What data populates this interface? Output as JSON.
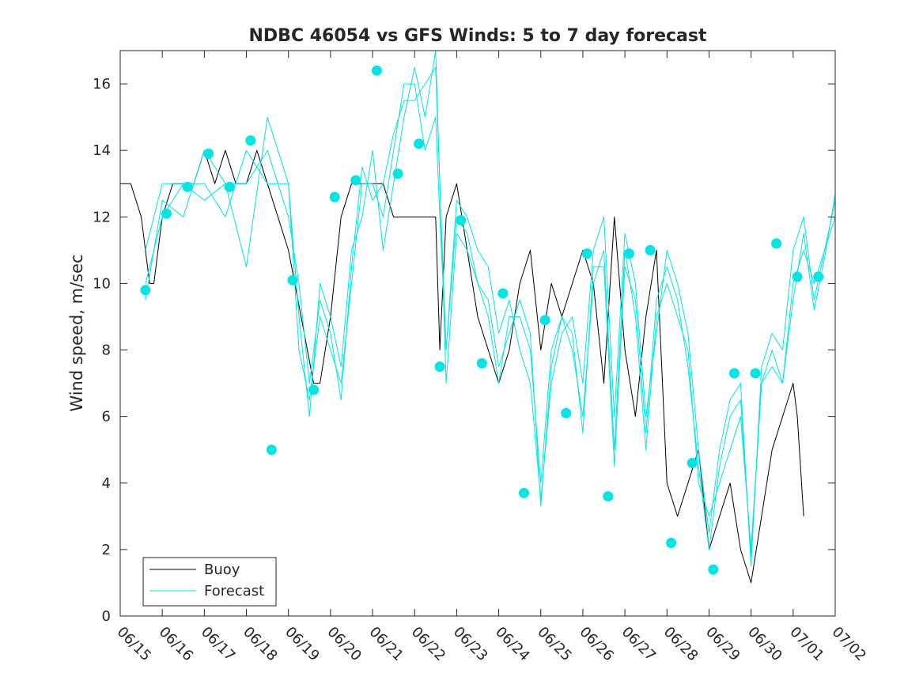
{
  "chart_data": {
    "type": "line",
    "title": "NDBC 46054 vs GFS Winds: 5 to 7 day forecast",
    "xlabel": "",
    "ylabel": "Wind speed, m/sec",
    "xlim": [
      "06/15",
      "07/02"
    ],
    "ylim": [
      0,
      17
    ],
    "x_ticks": [
      "06/15",
      "06/16",
      "06/17",
      "06/18",
      "06/19",
      "06/20",
      "06/21",
      "06/22",
      "06/23",
      "06/24",
      "06/25",
      "06/26",
      "06/27",
      "06/28",
      "06/29",
      "06/30",
      "07/01",
      "07/02"
    ],
    "y_ticks": [
      0,
      2,
      4,
      6,
      8,
      10,
      12,
      14,
      16
    ],
    "legend": {
      "location": "bottom-left",
      "entries": [
        "Buoy",
        "Forecast"
      ]
    },
    "colors": {
      "buoy": "#000000",
      "forecast": "#00e5e5"
    },
    "x_units": "days since 06/15 00:00",
    "series": [
      {
        "name": "Buoy",
        "style": "line",
        "x": [
          0,
          0.25,
          0.5,
          0.6,
          0.7,
          0.8,
          1.0,
          1.25,
          1.5,
          1.75,
          2.0,
          2.25,
          2.5,
          2.75,
          3.0,
          3.25,
          3.5,
          3.75,
          4.0,
          4.15,
          4.3,
          4.45,
          4.6,
          4.75,
          5.0,
          5.25,
          5.5,
          5.75,
          6.0,
          6.25,
          6.5,
          6.75,
          7.0,
          7.25,
          7.5,
          7.6,
          7.75,
          8.0,
          8.25,
          8.5,
          8.75,
          9.0,
          9.25,
          9.5,
          9.75,
          10.0,
          10.25,
          10.5,
          10.75,
          11.0,
          11.25,
          11.5,
          11.75,
          12.0,
          12.25,
          12.5,
          12.75,
          13.0,
          13.25,
          13.5,
          13.75,
          14.0,
          14.25,
          14.5,
          14.75,
          15.0,
          15.25,
          15.5,
          15.75,
          16.0,
          16.1,
          16.25
        ],
        "y": [
          13,
          13,
          12,
          11,
          10,
          10,
          12,
          13,
          13,
          13,
          14,
          13,
          14,
          13,
          13,
          14,
          13,
          12,
          11,
          10,
          9,
          8,
          7,
          7,
          9,
          12,
          13,
          13,
          13,
          13,
          12,
          12,
          12,
          12,
          12,
          8,
          12,
          13,
          11,
          9,
          8,
          7,
          8,
          10,
          11,
          8,
          10,
          9,
          10,
          11,
          10,
          7,
          12,
          8,
          6,
          9,
          11,
          4,
          3,
          4,
          5,
          2,
          3,
          4,
          2,
          1,
          3,
          5,
          6,
          7,
          6,
          3
        ]
      },
      {
        "name": "Forecast",
        "style": "line",
        "x": [
          0.6,
          1.0,
          1.5,
          2.0,
          2.5,
          3.0,
          3.5,
          4.0,
          4.25,
          4.5,
          4.75,
          5.0,
          5.25,
          5.5,
          5.75,
          6.0,
          6.25,
          6.5,
          6.75,
          7.0,
          7.25,
          7.5,
          7.6,
          7.75,
          8.0,
          8.25,
          8.5,
          8.75,
          9.0,
          9.25,
          9.5,
          9.75,
          10.0,
          10.25,
          10.5,
          10.75,
          11.0,
          11.25,
          11.5,
          11.75,
          12.0,
          12.25,
          12.5,
          12.75,
          13.0,
          13.25,
          13.5,
          13.75,
          14.0,
          14.25,
          14.5,
          14.75,
          15.0,
          15.25,
          15.5,
          15.75,
          16.0,
          16.25,
          16.5,
          16.75,
          17.0
        ],
        "y": [
          11,
          13,
          13,
          13,
          12,
          14,
          13,
          13,
          8,
          6.5,
          9,
          8,
          7,
          10,
          13,
          13,
          12,
          14,
          16,
          16,
          14,
          15,
          12,
          8,
          12,
          11.5,
          10,
          9,
          7,
          9,
          9,
          8,
          4,
          8,
          9,
          8,
          6,
          10,
          11,
          5,
          11,
          9,
          5,
          9,
          10,
          9,
          8,
          4,
          3,
          4,
          5,
          6,
          2,
          7,
          8,
          7,
          10,
          11,
          10,
          11,
          12
        ]
      },
      {
        "name": "Forecast",
        "style": "line",
        "x": [
          0.6,
          1.0,
          1.5,
          2.0,
          2.5,
          3.0,
          3.5,
          4.0,
          4.25,
          4.5,
          4.75,
          5.0,
          5.25,
          5.5,
          5.75,
          6.0,
          6.25,
          6.5,
          6.75,
          7.0,
          7.25,
          7.5,
          7.6,
          7.75,
          8.0,
          8.25,
          8.5,
          8.75,
          9.0,
          9.25,
          9.5,
          9.75,
          10.0,
          10.25,
          10.5,
          10.75,
          11.0,
          11.25,
          11.5,
          11.75,
          12.0,
          12.25,
          12.5,
          12.75,
          13.0,
          13.25,
          13.5,
          13.75,
          14.0,
          14.25,
          14.5,
          14.75,
          15.0,
          15.25,
          15.5,
          15.75,
          16.0,
          16.25,
          16.5,
          16.75,
          17.0
        ],
        "y": [
          10,
          12,
          13,
          12.5,
          13,
          10.5,
          15,
          13,
          9,
          6,
          10,
          9,
          7.5,
          11,
          12,
          14,
          11,
          13,
          15,
          16.5,
          15,
          17,
          13,
          8,
          12.5,
          12,
          11,
          10.5,
          8.5,
          9.5,
          8,
          7,
          3.5,
          7,
          8.5,
          9,
          7,
          11,
          12,
          6,
          11.5,
          10,
          6,
          8.5,
          11,
          10,
          8.5,
          5,
          2.5,
          5,
          6.5,
          7,
          1.5,
          7.5,
          8.5,
          8,
          11,
          12,
          9.5,
          11,
          12.5
        ]
      },
      {
        "name": "Forecast",
        "style": "line",
        "x": [
          0.6,
          1.0,
          1.5,
          2.0,
          2.5,
          3.0,
          3.5,
          4.0,
          4.25,
          4.5,
          4.75,
          5.0,
          5.25,
          5.5,
          5.75,
          6.0,
          6.25,
          6.5,
          6.75,
          7.0,
          7.25,
          7.5,
          7.6,
          7.75,
          8.0,
          8.25,
          8.5,
          8.75,
          9.0,
          9.25,
          9.5,
          9.75,
          10.0,
          10.25,
          10.5,
          10.75,
          11.0,
          11.25,
          11.5,
          11.75,
          12.0,
          12.25,
          12.5,
          12.75,
          13.0,
          13.25,
          13.5,
          13.75,
          14.0,
          14.25,
          14.5,
          14.75,
          15.0,
          15.25,
          15.5,
          15.75,
          16.0,
          16.25,
          16.5,
          16.75,
          17.0
        ],
        "y": [
          9.5,
          12.5,
          12,
          14,
          13,
          13,
          14,
          12,
          10,
          7,
          9.5,
          8.5,
          6.5,
          10.5,
          13.5,
          12.5,
          13,
          14.5,
          15.5,
          15.5,
          16,
          16.5,
          13,
          7,
          11.5,
          11,
          10,
          9.5,
          7.5,
          8.5,
          9.5,
          8.5,
          3.3,
          7.5,
          9,
          8.5,
          5.5,
          10.5,
          10.5,
          4.5,
          10.5,
          9.5,
          5.5,
          9.5,
          10.5,
          9.5,
          7.5,
          4.5,
          2,
          4.5,
          6,
          6.5,
          1.8,
          7,
          7.5,
          7,
          9.5,
          11.5,
          9.2,
          10.8,
          12.7
        ]
      },
      {
        "name": "Forecast",
        "style": "markers",
        "x": [
          0.6,
          1.1,
          1.6,
          2.1,
          2.6,
          3.1,
          3.6,
          4.1,
          4.6,
          5.1,
          5.6,
          6.1,
          6.6,
          7.1,
          7.6,
          8.1,
          8.6,
          9.1,
          9.6,
          10.1,
          10.6,
          11.1,
          11.6,
          12.1,
          12.6,
          13.1,
          13.6,
          14.1,
          14.6,
          15.1,
          15.6,
          16.1,
          16.6
        ],
        "y": [
          9.8,
          12.1,
          12.9,
          13.9,
          12.9,
          14.3,
          5.0,
          10.1,
          6.8,
          12.6,
          13.1,
          16.4,
          13.3,
          14.2,
          7.5,
          11.9,
          7.6,
          9.7,
          3.7,
          8.9,
          6.1,
          10.9,
          3.6,
          10.9,
          11.0,
          2.2,
          4.6,
          1.4,
          7.3,
          7.3,
          11.2,
          10.2,
          10.2
        ]
      }
    ]
  }
}
